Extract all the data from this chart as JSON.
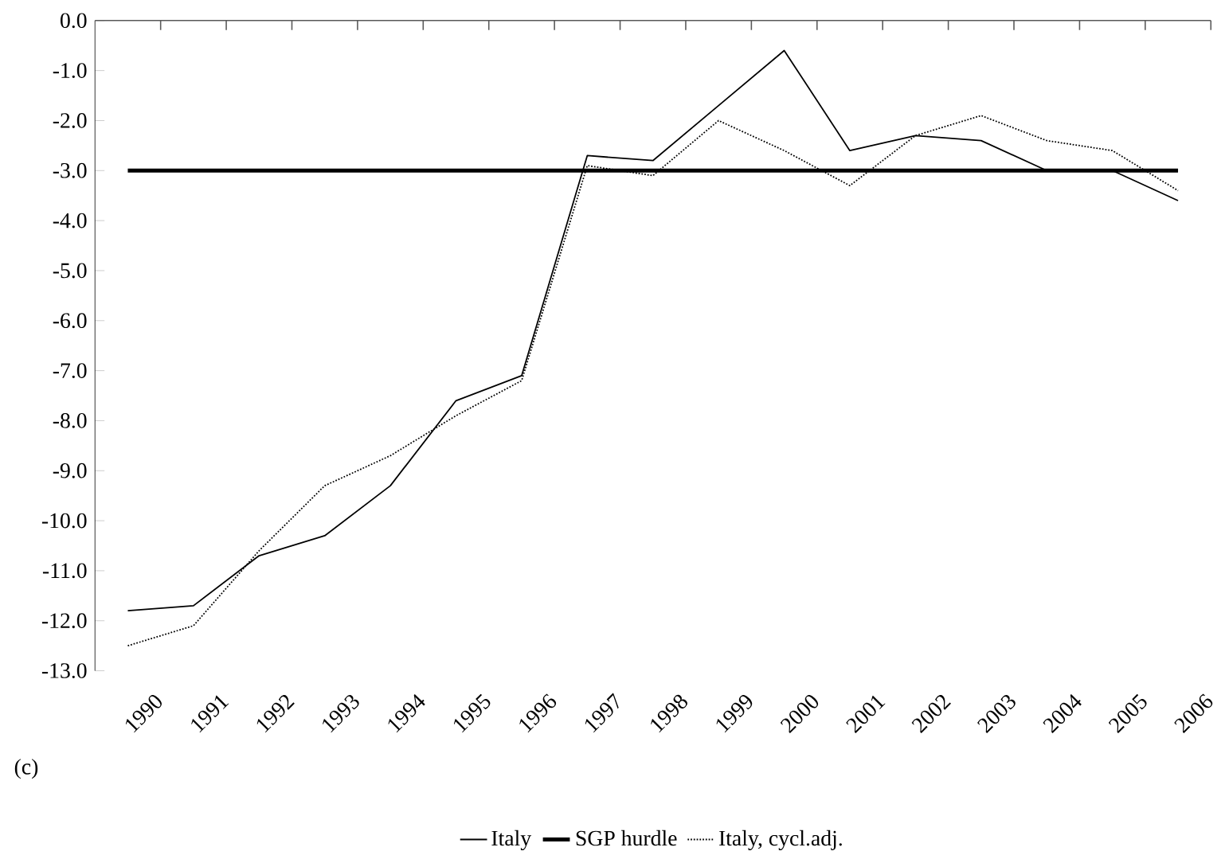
{
  "chart_data": {
    "type": "line",
    "categories": [
      "1990",
      "1991",
      "1992",
      "1993",
      "1994",
      "1995",
      "1996",
      "1997",
      "1998",
      "1999",
      "2000",
      "2001",
      "2002",
      "2003",
      "2004",
      "2005",
      "2006"
    ],
    "series": [
      {
        "name": "Italy",
        "color": "#000000",
        "line_style": "solid",
        "values": [
          -11.8,
          -11.7,
          -10.7,
          -10.3,
          -9.3,
          -7.6,
          -7.1,
          -2.7,
          -2.8,
          -1.7,
          -0.6,
          -2.6,
          -2.3,
          -2.4,
          -3.0,
          -3.0,
          -3.6
        ]
      },
      {
        "name": "Italy, cycl.adj.",
        "color": "#000000",
        "line_style": "dotted",
        "values": [
          -12.5,
          -12.1,
          -10.6,
          -9.3,
          -8.7,
          -7.9,
          -7.2,
          -2.9,
          -3.1,
          -2.0,
          -2.6,
          -3.3,
          -2.3,
          -1.9,
          -2.4,
          -2.6,
          -3.4
        ]
      }
    ],
    "ref_lines": [
      {
        "axis": "y",
        "value": -3.0,
        "label": "SGP hurdle",
        "color": "#000000",
        "line_style": "solid"
      }
    ],
    "ylim": [
      -13.0,
      0.0
    ],
    "yticks": [
      {
        "value": 0,
        "label": "0.0"
      },
      {
        "value": -1,
        "label": "-1.0"
      },
      {
        "value": -2,
        "label": "-2.0"
      },
      {
        "value": -3,
        "label": "-3.0"
      },
      {
        "value": -4,
        "label": "-4.0"
      },
      {
        "value": -5,
        "label": "-5.0"
      },
      {
        "value": -6,
        "label": "-6.0"
      },
      {
        "value": -7,
        "label": "-7.0"
      },
      {
        "value": -8,
        "label": "-8.0"
      },
      {
        "value": -9,
        "label": "-9.0"
      },
      {
        "value": -10,
        "label": "-10.0"
      },
      {
        "value": -11,
        "label": "-11.0"
      },
      {
        "value": -12,
        "label": "-12.0"
      },
      {
        "value": -13,
        "label": "-13.0"
      }
    ],
    "annotations": [
      "(c)"
    ],
    "legend": "bottom",
    "grid": false,
    "marker": "none"
  }
}
